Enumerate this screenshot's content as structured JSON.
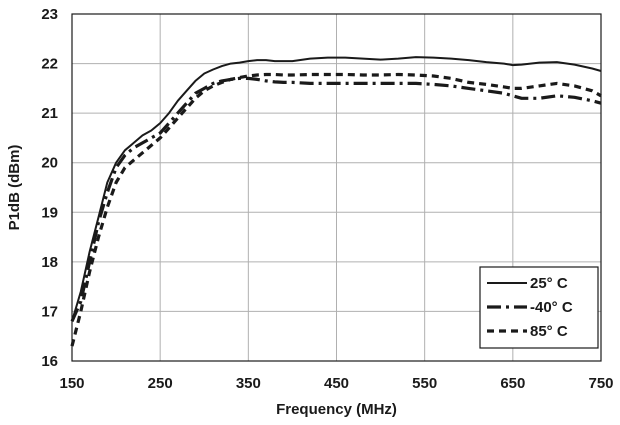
{
  "chart_data": {
    "type": "line",
    "xlabel": "Frequency (MHz)",
    "ylabel": "P1dB (dBm)",
    "xlim": [
      150,
      750
    ],
    "ylim": [
      16,
      23
    ],
    "xticks": [
      150,
      250,
      350,
      450,
      550,
      650,
      750
    ],
    "yticks": [
      16,
      17,
      18,
      19,
      20,
      21,
      22,
      23
    ],
    "grid": true,
    "legend_position": "bottom-right",
    "series": [
      {
        "name": "25° C",
        "style": "solid",
        "x": [
          150,
          160,
          170,
          180,
          190,
          200,
          210,
          220,
          230,
          240,
          250,
          260,
          270,
          280,
          290,
          300,
          310,
          320,
          330,
          340,
          350,
          360,
          370,
          380,
          390,
          400,
          420,
          440,
          460,
          480,
          500,
          520,
          540,
          560,
          580,
          600,
          620,
          640,
          650,
          660,
          680,
          700,
          720,
          740,
          750
        ],
        "values": [
          16.8,
          17.4,
          18.2,
          18.9,
          19.6,
          20.0,
          20.25,
          20.4,
          20.55,
          20.65,
          20.8,
          21.0,
          21.25,
          21.45,
          21.65,
          21.8,
          21.88,
          21.95,
          22.0,
          22.02,
          22.05,
          22.07,
          22.07,
          22.05,
          22.05,
          22.05,
          22.1,
          22.12,
          22.12,
          22.1,
          22.08,
          22.1,
          22.13,
          22.12,
          22.1,
          22.07,
          22.03,
          22.0,
          21.97,
          21.98,
          22.02,
          22.03,
          21.98,
          21.9,
          21.85
        ]
      },
      {
        "name": "-40° C",
        "style": "dash-dot",
        "x": [
          150,
          160,
          170,
          180,
          190,
          200,
          210,
          220,
          230,
          240,
          250,
          260,
          270,
          280,
          290,
          300,
          310,
          320,
          330,
          340,
          350,
          360,
          370,
          380,
          390,
          400,
          420,
          440,
          460,
          480,
          500,
          520,
          540,
          560,
          580,
          600,
          620,
          640,
          650,
          660,
          680,
          700,
          720,
          740,
          750
        ],
        "values": [
          16.8,
          17.2,
          18.0,
          18.8,
          19.4,
          19.9,
          20.15,
          20.3,
          20.4,
          20.5,
          20.6,
          20.8,
          21.0,
          21.2,
          21.4,
          21.5,
          21.6,
          21.65,
          21.68,
          21.7,
          21.7,
          21.68,
          21.65,
          21.63,
          21.62,
          21.62,
          21.6,
          21.6,
          21.6,
          21.6,
          21.6,
          21.6,
          21.6,
          21.58,
          21.55,
          21.5,
          21.45,
          21.4,
          21.35,
          21.3,
          21.3,
          21.35,
          21.32,
          21.25,
          21.2
        ]
      },
      {
        "name": "85° C",
        "style": "dashed",
        "x": [
          150,
          160,
          170,
          180,
          190,
          200,
          210,
          220,
          230,
          240,
          250,
          260,
          270,
          280,
          290,
          300,
          310,
          320,
          330,
          340,
          350,
          360,
          370,
          380,
          390,
          400,
          420,
          440,
          460,
          480,
          500,
          520,
          540,
          560,
          580,
          600,
          620,
          640,
          650,
          660,
          680,
          700,
          720,
          740,
          750
        ],
        "values": [
          16.3,
          17.0,
          17.8,
          18.5,
          19.1,
          19.6,
          19.9,
          20.05,
          20.2,
          20.35,
          20.5,
          20.7,
          20.9,
          21.1,
          21.3,
          21.45,
          21.55,
          21.62,
          21.68,
          21.72,
          21.75,
          21.77,
          21.78,
          21.78,
          21.77,
          21.77,
          21.78,
          21.78,
          21.78,
          21.77,
          21.77,
          21.78,
          21.77,
          21.75,
          21.7,
          21.62,
          21.58,
          21.53,
          21.5,
          21.5,
          21.55,
          21.6,
          21.55,
          21.45,
          21.35
        ]
      }
    ]
  },
  "colors": {
    "background": "#ffffff",
    "grid": "#b0b0b0",
    "frame": "#1a1a1a",
    "series": "#1a1a1a"
  }
}
